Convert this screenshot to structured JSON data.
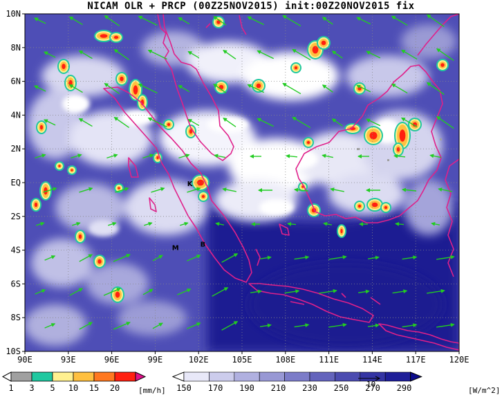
{
  "title": "NICAM OLR + PRCP (00Z25NOV2015) init:00Z20NOV2015 fix",
  "map": {
    "lon_range": [
      90,
      120
    ],
    "lat_range": [
      -10,
      10
    ],
    "x_ticks": [
      "90E",
      "93E",
      "96E",
      "99E",
      "102E",
      "105E",
      "108E",
      "111E",
      "114E",
      "117E",
      "120E"
    ],
    "y_ticks": [
      "10N",
      "8N",
      "6N",
      "4N",
      "2N",
      "EQ",
      "2S",
      "4S",
      "6S",
      "8S",
      "10S"
    ],
    "grid": "dotted",
    "stations": [
      {
        "label": "K",
        "lon": 101.4,
        "lat": -0.2
      },
      {
        "label": "M",
        "lon": 100.4,
        "lat": -4.0
      },
      {
        "label": "B",
        "lon": 102.3,
        "lat": -3.8
      }
    ],
    "reference_vector_label": "10"
  },
  "colors": {
    "coastline": "#e0208a",
    "wind_vectors": "#22cc22",
    "grid": "#888888",
    "frame": "#000000"
  },
  "precip_colorbar": {
    "labels": [
      "1",
      "3",
      "5",
      "10",
      "15",
      "20"
    ],
    "unit": "[mm/h]",
    "colors": [
      "#a0a0a0",
      "#20c8a0",
      "#fff090",
      "#ffc040",
      "#ff7820",
      "#ff2010",
      "#e0108a"
    ]
  },
  "olr_colorbar": {
    "labels": [
      "150",
      "170",
      "190",
      "210",
      "230",
      "250",
      "270",
      "290"
    ],
    "unit": "[W/m^2]",
    "colors": [
      "#ffffff",
      "#e8e8f8",
      "#ccccec",
      "#b0b0e0",
      "#9898d4",
      "#7c7cc8",
      "#6464bc",
      "#4c4cb0",
      "#3434a4",
      "#1e1e98",
      "#0c0c8c"
    ]
  }
}
